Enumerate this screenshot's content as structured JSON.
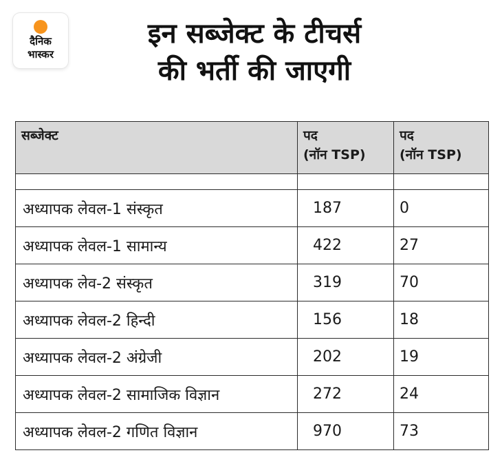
{
  "logo": {
    "line1": "दैनिक",
    "line2": "भास्कर",
    "sun_color": "#f7941d"
  },
  "headline": {
    "line1": "इन सब्जेक्ट के टीचर्स",
    "line2": "की भर्ती की जाएगी"
  },
  "table": {
    "headers": [
      {
        "label": "सब्जेक्ट",
        "sub": ""
      },
      {
        "label": "पद",
        "sub": "(नॉन TSP)"
      },
      {
        "label": "पद",
        "sub": "(नॉन TSP)"
      }
    ],
    "rows": [
      {
        "subject": "अध्यापक लेवल-1 संस्कृत",
        "non_tsp": "187",
        "tsp": "0"
      },
      {
        "subject": "अध्यापक लेवल-1 सामान्य",
        "non_tsp": "422",
        "tsp": "27"
      },
      {
        "subject": "अध्यापक लेव-2 संस्कृत",
        "non_tsp": "319",
        "tsp": "70"
      },
      {
        "subject": "अध्यापक लेवल-2 हिन्दी",
        "non_tsp": "156",
        "tsp": "18"
      },
      {
        "subject": "अध्यापक लेवल-2 अंग्रेजी",
        "non_tsp": "202",
        "tsp": "19"
      },
      {
        "subject": "अध्यापक लेवल-2 सामाजिक विज्ञान",
        "non_tsp": "272",
        "tsp": "24"
      },
      {
        "subject": "अध्यापक लेवल-2 गणित विज्ञान",
        "non_tsp": "970",
        "tsp": "73"
      }
    ]
  }
}
